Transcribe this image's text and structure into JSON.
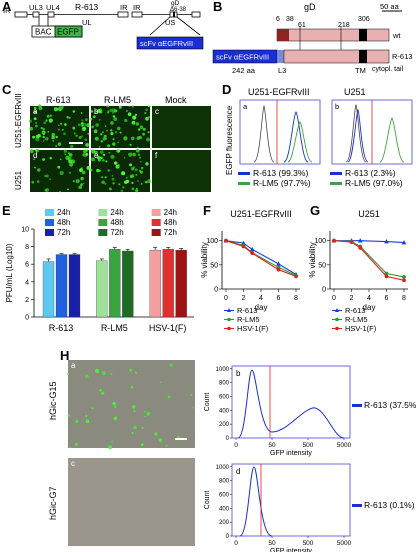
{
  "panels": {
    "A": "A",
    "B": "B",
    "C": "C",
    "D": "D",
    "E": "E",
    "F": "F",
    "G": "G",
    "H": "H"
  },
  "panelA": {
    "title": "R-613",
    "labels": {
      "ir1": "IR",
      "ul3": "UL3",
      "ul4": "UL4",
      "ul": "UL",
      "ir2": "IR",
      "ir3": "IR",
      "us": "US",
      "gd": "gD",
      "gd_del": "Δ6-38",
      "bac": "BAC",
      "egfp": "EGFP",
      "scfv": "scFv αEGFRvIII"
    }
  },
  "panelB": {
    "title": "gD",
    "scale": "50 aa",
    "positions": [
      "6",
      "38",
      "61",
      "218",
      "306"
    ],
    "wt": "wt",
    "r613": "R-613",
    "scfv": "scFv αEGFRvIII",
    "aa": "242 aa",
    "l3": "L3",
    "tm": "TM",
    "tail": "cytopl. tail"
  },
  "panelC": {
    "cols": [
      "R-613",
      "R-LM5",
      "Mock"
    ],
    "rows": [
      "U251-EGFRvIII",
      "U251"
    ],
    "cells": [
      "a",
      "b",
      "c",
      "d",
      "e",
      "f"
    ]
  },
  "panelD": {
    "ylabel": "EGFP fluorescence",
    "left": {
      "title": "U251-EGFRvIII",
      "sub": "a",
      "leg": [
        "R-613 (99.3%)",
        "R-LM5 (97.7%)"
      ]
    },
    "right": {
      "title": "U251",
      "sub": "b",
      "leg": [
        "R-613 (2.3%)",
        "R-LM5 (97.0%)"
      ]
    }
  },
  "chart_data": [
    {
      "type": "bar",
      "id": "E",
      "ylabel": "PFU/mL (Log10)",
      "ylim": [
        0,
        10
      ],
      "yticks": [
        "0",
        "2",
        "4",
        "6",
        "8",
        "10"
      ],
      "groups": [
        "R-613",
        "R-LM5",
        "HSV-1(F)"
      ],
      "series_names": [
        "24h",
        "48h",
        "72h"
      ],
      "values": [
        [
          6.3,
          7.1,
          7.1
        ],
        [
          6.4,
          7.7,
          7.5
        ],
        [
          7.6,
          7.7,
          7.6
        ]
      ],
      "errors": [
        [
          0.3,
          0.1,
          0.1
        ],
        [
          0.2,
          0.2,
          0.2
        ],
        [
          0.3,
          0.2,
          0.2
        ]
      ],
      "colors": [
        [
          "#5ec8f0",
          "#1f5fe0",
          "#1a1fa8"
        ],
        [
          "#9ee29a",
          "#3aa540",
          "#1e6b25"
        ],
        [
          "#f4a0a0",
          "#e03030",
          "#9a1414"
        ]
      ]
    },
    {
      "type": "line",
      "id": "F",
      "title": "U251-EGFRvIII",
      "xlabel": "day",
      "ylabel": "% viability",
      "x": [
        0,
        2,
        3,
        6,
        8
      ],
      "xticks": [
        "0",
        "2",
        "4",
        "6",
        "8"
      ],
      "yticks": [
        "0",
        "50",
        "100"
      ],
      "ylim": [
        0,
        120
      ],
      "series": [
        {
          "name": "R-613",
          "color": "#1a3fd8",
          "marker": "triangle",
          "values": [
            100,
            95,
            82,
            52,
            30
          ]
        },
        {
          "name": "R-LM5",
          "color": "#2f9a2f",
          "marker": "circle",
          "values": [
            100,
            90,
            75,
            45,
            28
          ]
        },
        {
          "name": "HSV-1(F)",
          "color": "#e02020",
          "marker": "circle",
          "values": [
            100,
            88,
            74,
            40,
            26
          ]
        }
      ]
    },
    {
      "type": "line",
      "id": "G",
      "title": "U251",
      "xlabel": "day",
      "ylabel": "% viability",
      "x": [
        0,
        2,
        3,
        6,
        8
      ],
      "xticks": [
        "0",
        "2",
        "4",
        "6",
        "8"
      ],
      "yticks": [
        "0",
        "50",
        "100"
      ],
      "ylim": [
        0,
        120
      ],
      "series": [
        {
          "name": "R-613",
          "color": "#1a3fd8",
          "marker": "triangle",
          "values": [
            100,
            100,
            100,
            98,
            96
          ]
        },
        {
          "name": "R-LM5",
          "color": "#2f9a2f",
          "marker": "circle",
          "values": [
            100,
            98,
            88,
            32,
            25
          ]
        },
        {
          "name": "HSV-1(F)",
          "color": "#e02020",
          "marker": "circle",
          "values": [
            100,
            97,
            85,
            26,
            18
          ]
        }
      ]
    }
  ],
  "panelH": {
    "rows": [
      "hGic-G15",
      "hGic-G7"
    ],
    "cells": [
      "a",
      "b",
      "c",
      "d"
    ],
    "xlabel": "GFP intensity",
    "ylabel": "Count",
    "xticks": [
      "0",
      "50",
      "500",
      "5000"
    ],
    "top": {
      "yticks": [
        "0",
        "200",
        "400",
        "600",
        "800",
        "1000"
      ],
      "leg": "R-613 (37.5%)"
    },
    "bottom": {
      "yticks": [
        "0",
        "200",
        "400",
        "600",
        "800",
        "1000"
      ],
      "leg": "R-613 (0.1%)"
    }
  }
}
